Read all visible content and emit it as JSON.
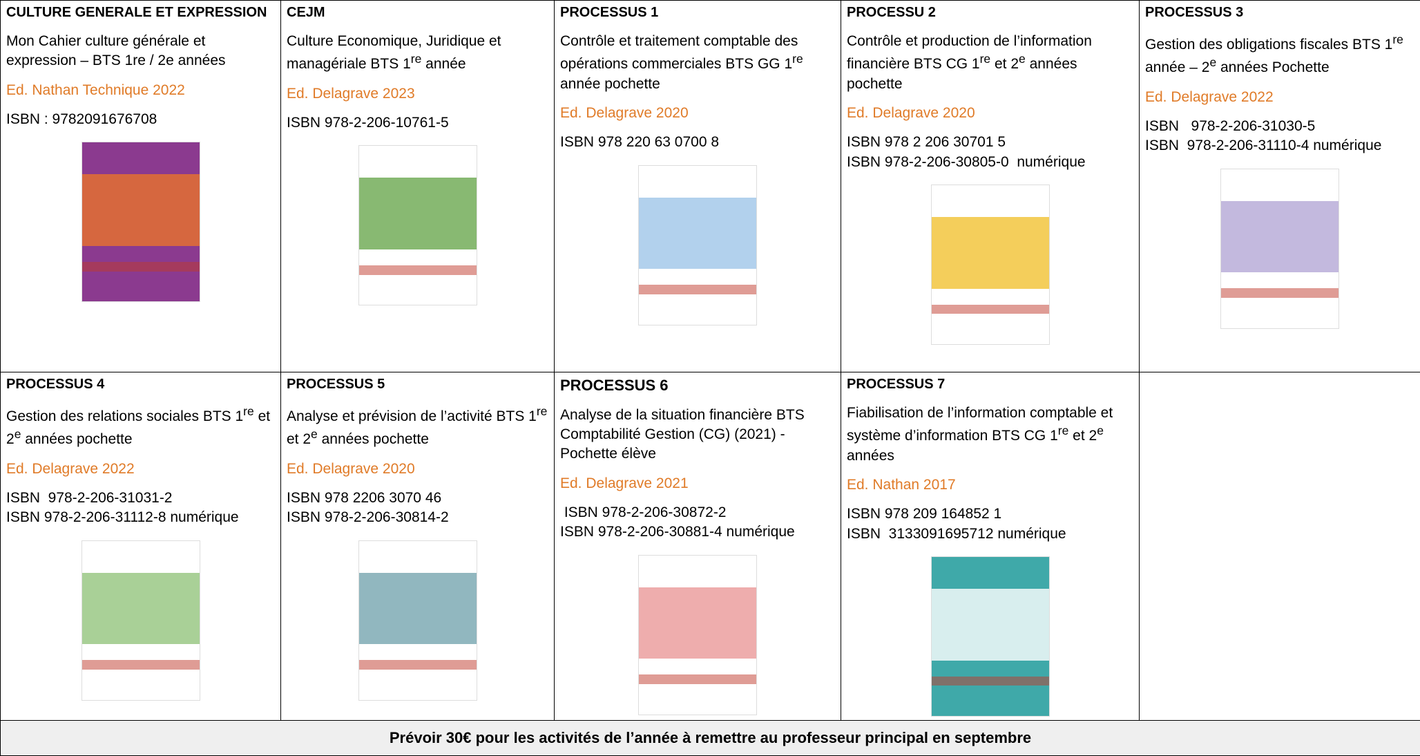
{
  "table": {
    "rows": [
      [
        {
          "heading": "CULTURE GENERALE ET EXPRESSION",
          "title": [
            "Mon Cahier culture générale et expression – BTS 1re / 2e années"
          ],
          "editor": "Ed. Nathan Technique  2022",
          "isbn": [
            "ISBN : 9782091676708"
          ]
        },
        {
          "heading": "CEJM",
          "title": [
            "Culture Economique, Juridique et managériale BTS 1",
            "re",
            " année"
          ],
          "editor": "Ed. Delagrave 2023",
          "isbn": [
            "ISBN 978-2-206-10761-5"
          ]
        },
        {
          "heading": "PROCESSUS 1",
          "title": [
            " Contrôle et traitement comptable des opérations commerciales BTS GG 1",
            "re",
            " année pochette"
          ],
          "editor": "Ed.  Delagrave  2020",
          "isbn": [
            "ISBN 978 220 63 0700 8"
          ]
        },
        {
          "heading": "PROCESSU 2",
          "title": [
            "Contrôle et production de l’information financière BTS CG 1",
            "re",
            " et 2",
            "e",
            " années pochette"
          ],
          "editor": "Ed. Delagrave 2020",
          "isbn": [
            "ISBN 978 2 206 30701 5",
            "ISBN 978-2-206-30805-0  numérique"
          ]
        },
        {
          "heading": "PROCESSUS 3",
          "title": [
            "Gestion des obligations fiscales BTS 1",
            "re",
            " année – 2",
            "e",
            " années  Pochette"
          ],
          "editor": "Ed. Delagrave 2022",
          "isbn": [
            "ISBN   978-2-206-31030-5",
            "ISBN  978-2-206-31110-4 numérique"
          ]
        }
      ],
      [
        {
          "heading": "PROCESSUS 4",
          "title": [
            "Gestion des relations sociales BTS 1",
            "re",
            " et 2",
            "e",
            " années pochette"
          ],
          "editor": "Ed. Delagrave 2022",
          "isbn": [
            "ISBN  978-2-206-31031-2",
            "ISBN 978-2-206-31112-8 numérique"
          ]
        },
        {
          "heading": "PROCESSUS 5",
          "title": [
            " Analyse et prévision de l’activité BTS 1",
            "re",
            " et 2",
            "e",
            " années pochette"
          ],
          "editor": "Ed. Delagrave 2020",
          "isbn": [
            "ISBN 978 2206 3070 46",
            "ISBN 978-2-206-30814-2"
          ]
        },
        {
          "heading": "PROCESSUS 6",
          "title": [
            "Analyse de la situation financière BTS Comptabilité Gestion (CG) (2021) - Pochette élève"
          ],
          "editor": "Ed. Delagrave 2021",
          "isbn": [
            " ISBN 978-2-206-30872-2",
            "ISBN 978-2-206-30881-4 numérique"
          ]
        },
        {
          "heading": "PROCESSUS 7",
          "title": [
            " Fiabilisation de l’information comptable et système d’information BTS CG 1",
            "re",
            " et 2",
            "e",
            " années"
          ],
          "editor": "Ed. Nathan 2017",
          "isbn": [
            "ISBN 978 209 164852 1",
            "ISBN  3133091695712 numérique"
          ]
        }
      ]
    ],
    "footer": "Prévoir 30€ pour les activités de l’année à remettre au professeur principal en septembre"
  }
}
